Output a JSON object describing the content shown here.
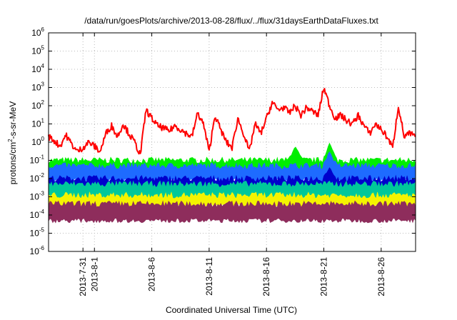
{
  "chart_data": {
    "type": "area",
    "title": "/data/run/goesPlots/archive/2013-08-28/flux/../flux/31daysEarthDataFluxes.txt",
    "xlabel": "Coordinated Universal Time (UTC)",
    "ylabel": {
      "prefix": "protons/cm",
      "superscript": "2",
      "suffix": "-s-sr-MeV"
    },
    "y_scale": "log",
    "ylim": [
      1e-06,
      1000000.0
    ],
    "y_ticks": [
      {
        "value": 1e-06,
        "base": "10",
        "exp": "-6"
      },
      {
        "value": 1e-05,
        "base": "10",
        "exp": "-5"
      },
      {
        "value": 0.0001,
        "base": "10",
        "exp": "-4"
      },
      {
        "value": 0.001,
        "base": "10",
        "exp": "-3"
      },
      {
        "value": 0.01,
        "base": "10",
        "exp": "-2"
      },
      {
        "value": 0.1,
        "base": "10",
        "exp": "-1"
      },
      {
        "value": 1,
        "base": "10",
        "exp": "0"
      },
      {
        "value": 10.0,
        "base": "10",
        "exp": "1"
      },
      {
        "value": 100.0,
        "base": "10",
        "exp": "2"
      },
      {
        "value": 1000.0,
        "base": "10",
        "exp": "3"
      },
      {
        "value": 10000.0,
        "base": "10",
        "exp": "4"
      },
      {
        "value": 100000.0,
        "base": "10",
        "exp": "5"
      },
      {
        "value": 1000000.0,
        "base": "10",
        "exp": "6"
      }
    ],
    "xlim": [
      "2013-07-28",
      "2013-08-29"
    ],
    "x_ticks": [
      {
        "date": "2013-07-31",
        "label": "2013-7-31"
      },
      {
        "date": "2013-08-01",
        "label": "2013-8-1"
      },
      {
        "date": "2013-08-06",
        "label": "2013-8-6"
      },
      {
        "date": "2013-08-11",
        "label": "2013-8-11"
      },
      {
        "date": "2013-08-16",
        "label": "2013-8-16"
      },
      {
        "date": "2013-08-21",
        "label": "2013-8-21"
      },
      {
        "date": "2013-08-26",
        "label": "2013-8-26"
      }
    ],
    "grid": true,
    "legend": "none",
    "series": [
      {
        "color": "#ff0000",
        "style": "line",
        "points": [
          [
            "2013-07-28T00:00",
            2.0
          ],
          [
            "2013-07-28T12:00",
            1.2
          ],
          [
            "2013-07-29T00:00",
            0.6
          ],
          [
            "2013-07-29T12:00",
            2.5
          ],
          [
            "2013-07-30T00:00",
            0.8
          ],
          [
            "2013-07-30T12:00",
            0.3
          ],
          [
            "2013-07-31T00:00",
            0.5
          ],
          [
            "2013-07-31T12:00",
            1.0
          ],
          [
            "2013-08-01T00:00",
            0.6
          ],
          [
            "2013-08-01T12:00",
            0.3
          ],
          [
            "2013-08-02T00:00",
            3.0
          ],
          [
            "2013-08-02T12:00",
            8.0
          ],
          [
            "2013-08-03T00:00",
            2.0
          ],
          [
            "2013-08-03T12:00",
            10.0
          ],
          [
            "2013-08-04T00:00",
            3.0
          ],
          [
            "2013-08-04T12:00",
            1.0
          ],
          [
            "2013-08-05T00:00",
            0.2
          ],
          [
            "2013-08-05T12:00",
            60.0
          ],
          [
            "2013-08-06T00:00",
            20.0
          ],
          [
            "2013-08-06T12:00",
            8.0
          ],
          [
            "2013-08-07T00:00",
            6.0
          ],
          [
            "2013-08-07T12:00",
            4.0
          ],
          [
            "2013-08-08T00:00",
            8.0
          ],
          [
            "2013-08-08T12:00",
            5.0
          ],
          [
            "2013-08-09T00:00",
            3.0
          ],
          [
            "2013-08-09T12:00",
            2.0
          ],
          [
            "2013-08-10T00:00",
            40.0
          ],
          [
            "2013-08-10T12:00",
            10.0
          ],
          [
            "2013-08-11T00:00",
            0.3
          ],
          [
            "2013-08-11T12:00",
            30.0
          ],
          [
            "2013-08-12T00:00",
            5.0
          ],
          [
            "2013-08-12T12:00",
            1.0
          ],
          [
            "2013-08-13T00:00",
            0.5
          ],
          [
            "2013-08-13T12:00",
            20.0
          ],
          [
            "2013-08-14T00:00",
            3.0
          ],
          [
            "2013-08-14T12:00",
            0.3
          ],
          [
            "2013-08-15T00:00",
            10.0
          ],
          [
            "2013-08-15T12:00",
            3.0
          ],
          [
            "2013-08-16T00:00",
            20.0
          ],
          [
            "2013-08-16T12:00",
            150.0
          ],
          [
            "2013-08-17T00:00",
            60.0
          ],
          [
            "2013-08-17T12:00",
            80.0
          ],
          [
            "2013-08-18T00:00",
            40.0
          ],
          [
            "2013-08-18T12:00",
            100.0
          ],
          [
            "2013-08-19T00:00",
            30.0
          ],
          [
            "2013-08-19T12:00",
            80.0
          ],
          [
            "2013-08-20T00:00",
            50.0
          ],
          [
            "2013-08-20T12:00",
            30.0
          ],
          [
            "2013-08-21T00:00",
            1000.0
          ],
          [
            "2013-08-21T12:00",
            100.0
          ],
          [
            "2013-08-22T00:00",
            20.0
          ],
          [
            "2013-08-22T12:00",
            30.0
          ],
          [
            "2013-08-23T00:00",
            15.0
          ],
          [
            "2013-08-23T12:00",
            10.0
          ],
          [
            "2013-08-24T00:00",
            30.0
          ],
          [
            "2013-08-24T12:00",
            8.0
          ],
          [
            "2013-08-25T00:00",
            3.0
          ],
          [
            "2013-08-25T12:00",
            10.0
          ],
          [
            "2013-08-26T00:00",
            5.0
          ],
          [
            "2013-08-26T12:00",
            2.0
          ],
          [
            "2013-08-27T00:00",
            0.5
          ],
          [
            "2013-08-27T12:00",
            100.0
          ],
          [
            "2013-08-28T00:00",
            2.0
          ],
          [
            "2013-08-28T12:00",
            3.0
          ],
          [
            "2013-08-29T00:00",
            2.0
          ]
        ]
      },
      {
        "color": "#00ee00",
        "style": "band",
        "low": 0.02,
        "high": 0.1,
        "spikes": [
          [
            "2013-08-18T12:00",
            0.6
          ],
          [
            "2013-08-21T12:00",
            0.9
          ]
        ]
      },
      {
        "color": "#1e6bff",
        "style": "band",
        "low": 0.008,
        "high": 0.05,
        "spikes": [
          [
            "2013-08-21T12:00",
            0.3
          ]
        ]
      },
      {
        "color": "#0000cc",
        "style": "band",
        "low": 0.003,
        "high": 0.01,
        "spikes": [
          [
            "2013-08-21T12:00",
            0.04
          ]
        ]
      },
      {
        "color": "#00c89a",
        "style": "band",
        "low": 0.0008,
        "high": 0.005
      },
      {
        "color": "#f4f400",
        "style": "band",
        "low": 0.0003,
        "high": 0.0012
      },
      {
        "color": "#8e2d5c",
        "style": "band",
        "low": 5e-05,
        "high": 0.0004
      }
    ]
  }
}
